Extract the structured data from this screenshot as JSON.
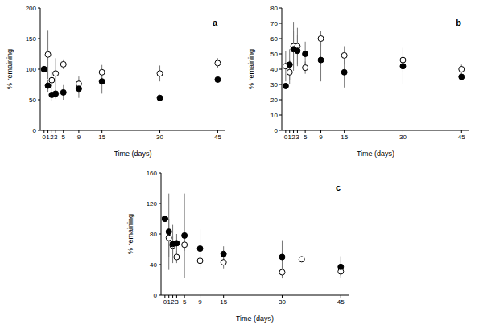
{
  "chart_data": [
    {
      "type": "scatter",
      "title": "a",
      "x_label": "Time (days)",
      "y_label": "% remaining",
      "xlim": [
        -1,
        47
      ],
      "xticks": [
        0,
        1,
        2,
        3,
        5,
        9,
        15,
        30,
        45
      ],
      "ylim": [
        0,
        200
      ],
      "yticks": [
        0,
        50,
        100,
        150,
        200
      ],
      "series": [
        {
          "color": "#000000",
          "marker": "circle_open",
          "x": [
            0,
            1,
            2,
            3,
            5,
            9,
            15,
            30,
            45
          ],
          "values": [
            100,
            124,
            82,
            93,
            108,
            76,
            95,
            93,
            110
          ],
          "errors": [
            null,
            40,
            15,
            25,
            8,
            12,
            12,
            13,
            8
          ]
        },
        {
          "color": "#000000",
          "marker": "circle",
          "x": [
            0,
            1,
            2,
            3,
            5,
            9,
            15,
            30,
            45
          ],
          "values": [
            100,
            73,
            58,
            60,
            62,
            68,
            80,
            53,
            83
          ],
          "errors": [
            null,
            10,
            10,
            8,
            12,
            15,
            20,
            4,
            4
          ]
        }
      ]
    },
    {
      "type": "scatter",
      "title": "b",
      "x_label": "Time (days)",
      "y_label": "% remaining",
      "xlim": [
        -1,
        47
      ],
      "xticks": [
        0,
        1,
        2,
        3,
        5,
        9,
        15,
        30,
        45
      ],
      "ylim": [
        0,
        80
      ],
      "yticks": [
        0,
        10,
        20,
        30,
        40,
        50,
        60,
        70,
        80
      ],
      "series": [
        {
          "color": "#000000",
          "marker": "circle_open",
          "x": [
            0,
            1,
            2,
            3,
            5,
            9,
            15,
            30,
            45
          ],
          "values": [
            42,
            38,
            55,
            55,
            41,
            60,
            49,
            46,
            40
          ],
          "errors": [
            10,
            8,
            16,
            12,
            4,
            5,
            6,
            8,
            3
          ]
        },
        {
          "color": "#000000",
          "marker": "circle",
          "x": [
            0,
            1,
            2,
            3,
            5,
            9,
            15,
            30,
            45
          ],
          "values": [
            29,
            43,
            53,
            52,
            50,
            46,
            38,
            42,
            35
          ],
          "errors": [
            2,
            10,
            12,
            10,
            8,
            14,
            10,
            12,
            2
          ]
        }
      ]
    },
    {
      "type": "scatter",
      "title": "c",
      "x_label": "Time (days)",
      "y_label": "% remaining",
      "xlim": [
        -1,
        47
      ],
      "xticks": [
        0,
        1,
        2,
        3,
        5,
        9,
        15,
        30,
        45
      ],
      "ylim": [
        0,
        160
      ],
      "yticks": [
        0,
        40,
        80,
        120,
        160
      ],
      "series": [
        {
          "color": "#000000",
          "marker": "circle_open",
          "x": [
            0,
            1,
            2,
            3,
            5,
            9,
            15,
            30,
            35,
            45
          ],
          "values": [
            100,
            75,
            65,
            50,
            66,
            45,
            43,
            30,
            47,
            31
          ],
          "errors": [
            null,
            25,
            12,
            8,
            8,
            10,
            8,
            8,
            null,
            6
          ]
        },
        {
          "color": "#000000",
          "marker": "circle",
          "x": [
            0,
            1,
            2,
            3,
            5,
            9,
            15,
            30,
            45
          ],
          "values": [
            100,
            83,
            67,
            68,
            78,
            61,
            54,
            50,
            37
          ],
          "errors": [
            null,
            50,
            25,
            12,
            55,
            25,
            10,
            22,
            14
          ]
        }
      ]
    }
  ]
}
